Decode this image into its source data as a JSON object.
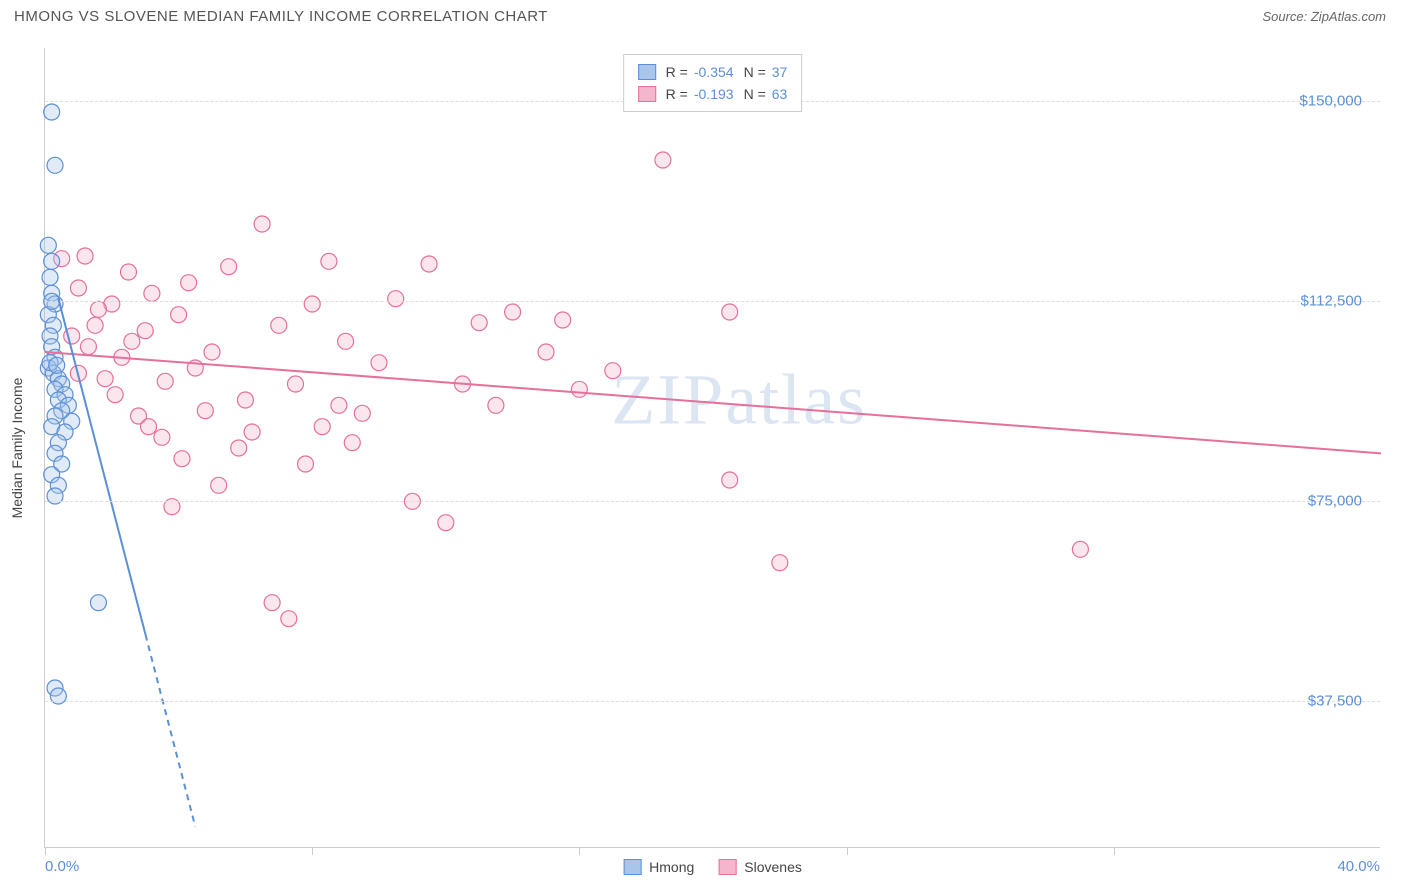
{
  "header": {
    "title": "HMONG VS SLOVENE MEDIAN FAMILY INCOME CORRELATION CHART",
    "source": "Source: ZipAtlas.com"
  },
  "watermark": {
    "zip": "ZIP",
    "atlas": "atlas"
  },
  "chart": {
    "type": "scatter",
    "xlim": [
      0,
      40
    ],
    "ylim": [
      10000,
      160000
    ],
    "xtick_positions_pct": [
      0,
      0.2,
      0.4,
      0.6,
      0.8
    ],
    "xlabel_min": "0.0%",
    "xlabel_max": "40.0%",
    "ylabel": "Median Family Income",
    "yticks": [
      {
        "value": 37500,
        "label": "$37,500"
      },
      {
        "value": 75000,
        "label": "$75,000"
      },
      {
        "value": 112500,
        "label": "$112,500"
      },
      {
        "value": 150000,
        "label": "$150,000"
      }
    ],
    "grid_color": "#dddddd",
    "axis_color": "#cccccc",
    "background_color": "#ffffff",
    "tick_label_color": "#5b8fd6",
    "label_fontsize": 14,
    "tick_fontsize": 15,
    "marker_radius": 8,
    "marker_fill_opacity": 0.35,
    "marker_stroke_width": 1.2,
    "trend_line_width": 2,
    "series": [
      {
        "name": "Hmong",
        "color": "#5b8fd6",
        "fill": "#a9c5ea",
        "R": "-0.354",
        "N": "37",
        "trend": {
          "x1": 0.4,
          "y1": 113000,
          "x2": 4.5,
          "y2": 14000,
          "dash_after_y": 50000
        },
        "points": [
          {
            "x": 0.2,
            "y": 148000
          },
          {
            "x": 0.3,
            "y": 138000
          },
          {
            "x": 0.1,
            "y": 123000
          },
          {
            "x": 0.2,
            "y": 120000
          },
          {
            "x": 0.15,
            "y": 117000
          },
          {
            "x": 0.2,
            "y": 114000
          },
          {
            "x": 0.3,
            "y": 112000
          },
          {
            "x": 0.1,
            "y": 110000
          },
          {
            "x": 0.25,
            "y": 108000
          },
          {
            "x": 0.15,
            "y": 106000
          },
          {
            "x": 0.2,
            "y": 104000
          },
          {
            "x": 0.3,
            "y": 102000
          },
          {
            "x": 0.1,
            "y": 100000
          },
          {
            "x": 0.25,
            "y": 99000
          },
          {
            "x": 0.4,
            "y": 98000
          },
          {
            "x": 0.5,
            "y": 97000
          },
          {
            "x": 0.3,
            "y": 96000
          },
          {
            "x": 0.6,
            "y": 95000
          },
          {
            "x": 0.4,
            "y": 94000
          },
          {
            "x": 0.7,
            "y": 93000
          },
          {
            "x": 0.5,
            "y": 92000
          },
          {
            "x": 0.3,
            "y": 91000
          },
          {
            "x": 0.8,
            "y": 90000
          },
          {
            "x": 0.2,
            "y": 89000
          },
          {
            "x": 0.6,
            "y": 88000
          },
          {
            "x": 0.4,
            "y": 86000
          },
          {
            "x": 0.3,
            "y": 84000
          },
          {
            "x": 0.5,
            "y": 82000
          },
          {
            "x": 0.2,
            "y": 80000
          },
          {
            "x": 0.4,
            "y": 78000
          },
          {
            "x": 0.3,
            "y": 76000
          },
          {
            "x": 1.6,
            "y": 56000
          },
          {
            "x": 0.3,
            "y": 40000
          },
          {
            "x": 0.4,
            "y": 38500
          },
          {
            "x": 0.2,
            "y": 112500
          },
          {
            "x": 0.15,
            "y": 101000
          },
          {
            "x": 0.35,
            "y": 100500
          }
        ]
      },
      {
        "name": "Slovenes",
        "color": "#e66f9b",
        "fill": "#f3b6cd",
        "R": "-0.193",
        "N": "63",
        "trend": {
          "x1": 0,
          "y1": 103000,
          "x2": 40,
          "y2": 84000
        },
        "points": [
          {
            "x": 0.5,
            "y": 120500
          },
          {
            "x": 1.0,
            "y": 115000
          },
          {
            "x": 1.2,
            "y": 121000
          },
          {
            "x": 1.5,
            "y": 108000
          },
          {
            "x": 1.8,
            "y": 98000
          },
          {
            "x": 2.0,
            "y": 112000
          },
          {
            "x": 2.3,
            "y": 102000
          },
          {
            "x": 2.5,
            "y": 118000
          },
          {
            "x": 2.8,
            "y": 91000
          },
          {
            "x": 3.0,
            "y": 107000
          },
          {
            "x": 3.2,
            "y": 114000
          },
          {
            "x": 3.5,
            "y": 87000
          },
          {
            "x": 3.8,
            "y": 74000
          },
          {
            "x": 4.0,
            "y": 110000
          },
          {
            "x": 4.3,
            "y": 116000
          },
          {
            "x": 4.5,
            "y": 100000
          },
          {
            "x": 4.8,
            "y": 92000
          },
          {
            "x": 5.0,
            "y": 103000
          },
          {
            "x": 5.5,
            "y": 119000
          },
          {
            "x": 5.8,
            "y": 85000
          },
          {
            "x": 6.0,
            "y": 94000
          },
          {
            "x": 6.5,
            "y": 127000
          },
          {
            "x": 6.8,
            "y": 56000
          },
          {
            "x": 7.0,
            "y": 108000
          },
          {
            "x": 7.3,
            "y": 53000
          },
          {
            "x": 7.5,
            "y": 97000
          },
          {
            "x": 8.0,
            "y": 112000
          },
          {
            "x": 8.3,
            "y": 89000
          },
          {
            "x": 8.5,
            "y": 120000
          },
          {
            "x": 8.8,
            "y": 93000
          },
          {
            "x": 9.0,
            "y": 105000
          },
          {
            "x": 9.5,
            "y": 91500
          },
          {
            "x": 10.0,
            "y": 101000
          },
          {
            "x": 10.5,
            "y": 113000
          },
          {
            "x": 11.0,
            "y": 75000
          },
          {
            "x": 11.5,
            "y": 119500
          },
          {
            "x": 12.0,
            "y": 71000
          },
          {
            "x": 12.5,
            "y": 97000
          },
          {
            "x": 13.0,
            "y": 108500
          },
          {
            "x": 14.0,
            "y": 110500
          },
          {
            "x": 15.0,
            "y": 103000
          },
          {
            "x": 15.5,
            "y": 109000
          },
          {
            "x": 16.0,
            "y": 96000
          },
          {
            "x": 17.0,
            "y": 99500
          },
          {
            "x": 18.5,
            "y": 139000
          },
          {
            "x": 20.5,
            "y": 110500
          },
          {
            "x": 20.5,
            "y": 79000
          },
          {
            "x": 22.0,
            "y": 63500
          },
          {
            "x": 31.0,
            "y": 66000
          },
          {
            "x": 0.8,
            "y": 106000
          },
          {
            "x": 1.0,
            "y": 99000
          },
          {
            "x": 1.3,
            "y": 104000
          },
          {
            "x": 1.6,
            "y": 111000
          },
          {
            "x": 2.1,
            "y": 95000
          },
          {
            "x": 2.6,
            "y": 105000
          },
          {
            "x": 3.1,
            "y": 89000
          },
          {
            "x": 3.6,
            "y": 97500
          },
          {
            "x": 4.1,
            "y": 83000
          },
          {
            "x": 5.2,
            "y": 78000
          },
          {
            "x": 6.2,
            "y": 88000
          },
          {
            "x": 7.8,
            "y": 82000
          },
          {
            "x": 9.2,
            "y": 86000
          },
          {
            "x": 13.5,
            "y": 93000
          }
        ]
      }
    ]
  },
  "legend_bottom": [
    {
      "label": "Hmong",
      "fill": "#a9c5ea",
      "stroke": "#5b8fd6"
    },
    {
      "label": "Slovenes",
      "fill": "#f3b6cd",
      "stroke": "#e66f9b"
    }
  ]
}
